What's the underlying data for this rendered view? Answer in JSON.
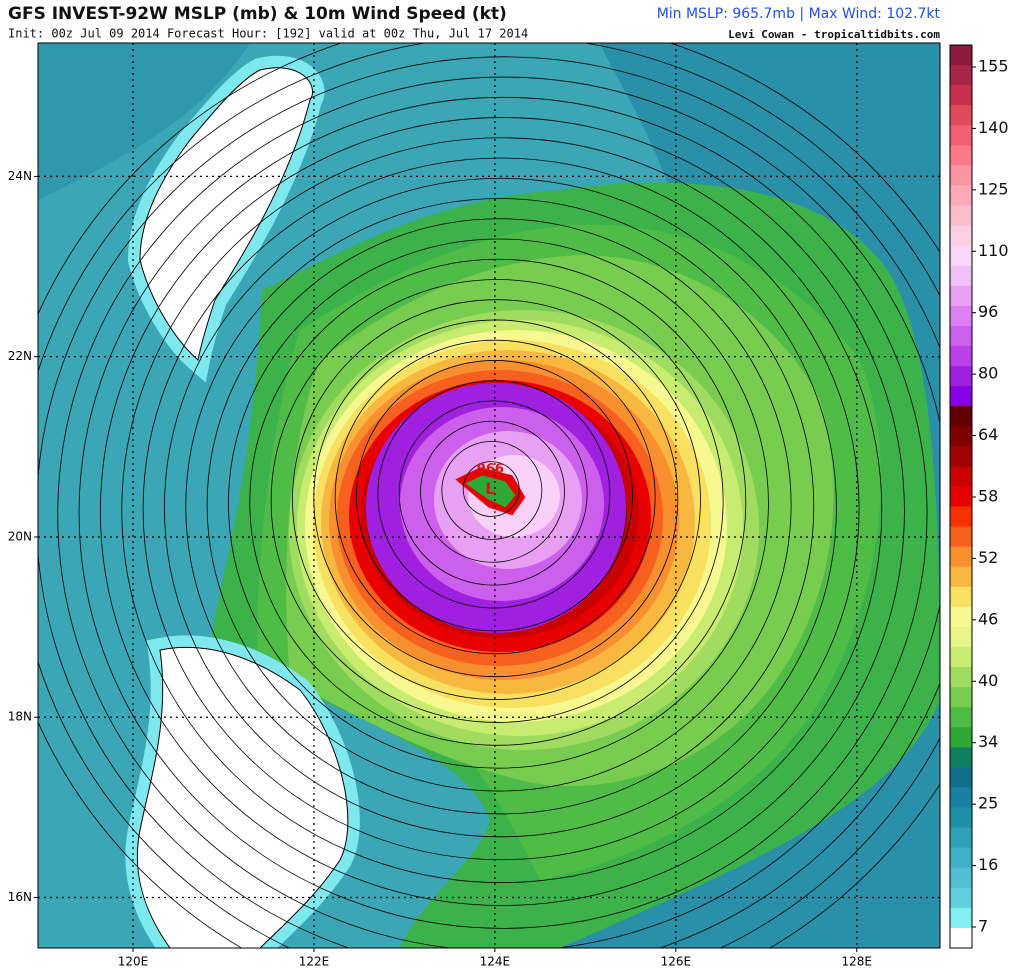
{
  "header": {
    "title": "GFS INVEST-92W MSLP (mb) & 10m Wind Speed (kt)",
    "summary": "Min MSLP: 965.7mb | Max Wind: 102.7kt",
    "init": "Init: 00z Jul 09 2014 Forecast Hour: [192] valid at 00z Thu, Jul 17 2014",
    "credit": "Levi Cowan - tropicaltidbits.com"
  },
  "map": {
    "lon_range": [
      118.95,
      128.92
    ],
    "lat_range": [
      15.44,
      25.48
    ],
    "lat_ticks": [
      {
        "value": 24,
        "label": "24N"
      },
      {
        "value": 22,
        "label": "22N"
      },
      {
        "value": 20,
        "label": "20N"
      },
      {
        "value": 18,
        "label": "18N"
      },
      {
        "value": 16,
        "label": "16N"
      }
    ],
    "lon_ticks": [
      {
        "value": 120,
        "label": "120E"
      },
      {
        "value": 122,
        "label": "122E"
      },
      {
        "value": 124,
        "label": "124E"
      },
      {
        "value": 126,
        "label": "126E"
      },
      {
        "value": 128,
        "label": "128E"
      }
    ],
    "center": {
      "pressure_label": "966",
      "symbol": "L",
      "lon": 123.95,
      "lat": 20.55
    }
  },
  "colorbar": {
    "ticks": [
      155,
      140,
      125,
      110,
      96,
      80,
      64,
      58,
      52,
      46,
      40,
      34,
      25,
      16,
      7
    ],
    "colors": [
      "#8b1a3c",
      "#a8254a",
      "#c83050",
      "#e04a5a",
      "#f06070",
      "#f87a88",
      "#fa94a0",
      "#fcaab8",
      "#fcbcd0",
      "#fcd0e4",
      "#f8d8f8",
      "#f0c0f8",
      "#e8a0f4",
      "#dc80f0",
      "#cc60ec",
      "#bc40e8",
      "#a020e0",
      "#8a00e8",
      "#600000",
      "#800000",
      "#a00000",
      "#c80000",
      "#e80000",
      "#f83000",
      "#f86020",
      "#f89030",
      "#f8b840",
      "#f8e060",
      "#f8f890",
      "#e8f488",
      "#c8ec70",
      "#a0dc60",
      "#78cc50",
      "#50bc48",
      "#30a838",
      "#108060",
      "#10708a",
      "#1880a0",
      "#2090a8",
      "#30a0b8",
      "#40b0c8",
      "#50c0d0",
      "#60d0e0",
      "#80f0f0",
      "#ffffff"
    ]
  }
}
